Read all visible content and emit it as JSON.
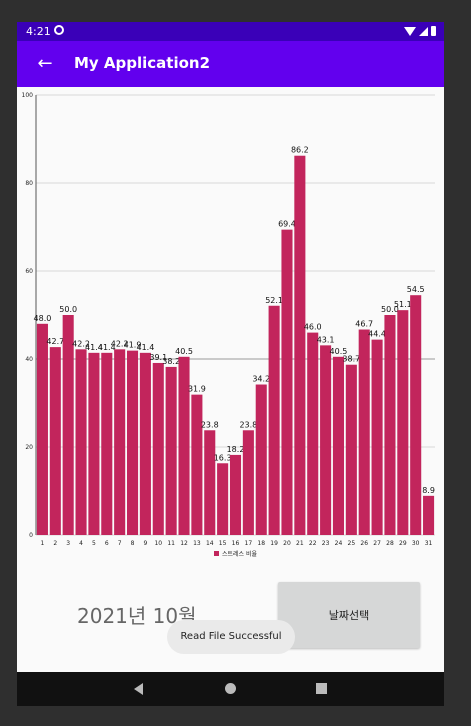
{
  "status_bar": {
    "time": "4:21"
  },
  "app_bar": {
    "back_icon": "arrow-left-icon",
    "title": "My Application2"
  },
  "chart_data": {
    "type": "bar",
    "categories": [
      "1",
      "2",
      "3",
      "4",
      "5",
      "6",
      "7",
      "8",
      "9",
      "10",
      "11",
      "12",
      "13",
      "14",
      "15",
      "16",
      "17",
      "18",
      "19",
      "20",
      "21",
      "22",
      "23",
      "24",
      "25",
      "26",
      "27",
      "28",
      "29",
      "30",
      "31"
    ],
    "series": [
      {
        "name": "스트레스 비율",
        "values": [
          48.0,
          42.7,
          50.0,
          42.2,
          41.4,
          41.4,
          42.2,
          41.9,
          41.4,
          39.1,
          38.2,
          40.5,
          31.9,
          23.8,
          16.3,
          18.2,
          23.8,
          34.2,
          52.1,
          69.4,
          86.2,
          46.0,
          43.1,
          40.5,
          38.7,
          46.7,
          44.4,
          50.0,
          51.1,
          54.5,
          8.9
        ],
        "labels": [
          "48.0",
          "42.7",
          "50.0",
          "42.2",
          "41.4",
          "41.4",
          "42.2",
          "41.9",
          "41.4",
          "39.1",
          "38.2",
          "40.5",
          "31.9",
          "23.8",
          "16.3",
          "18.2",
          "23.8",
          "34.2",
          "52.1",
          "69.4",
          "86.2",
          "46.0",
          "43.1",
          "40.5",
          "38.7",
          "46.7",
          "44.4",
          "50.0",
          "51.1",
          "54.5",
          "8.9"
        ],
        "color": "#c2255c"
      }
    ],
    "ylim": [
      0,
      100
    ],
    "yticks": [
      "0",
      "20",
      "40",
      "60",
      "80",
      "100"
    ],
    "grid": true,
    "legend_position": "bottom-center"
  },
  "main": {
    "month_label": "2021년 10월",
    "date_button_label": "날짜선택"
  },
  "toast": {
    "message": "Read File Successful"
  },
  "nav_bar": {
    "back_icon": "nav-back-icon",
    "home_icon": "nav-home-icon",
    "recent_icon": "nav-recents-icon"
  }
}
